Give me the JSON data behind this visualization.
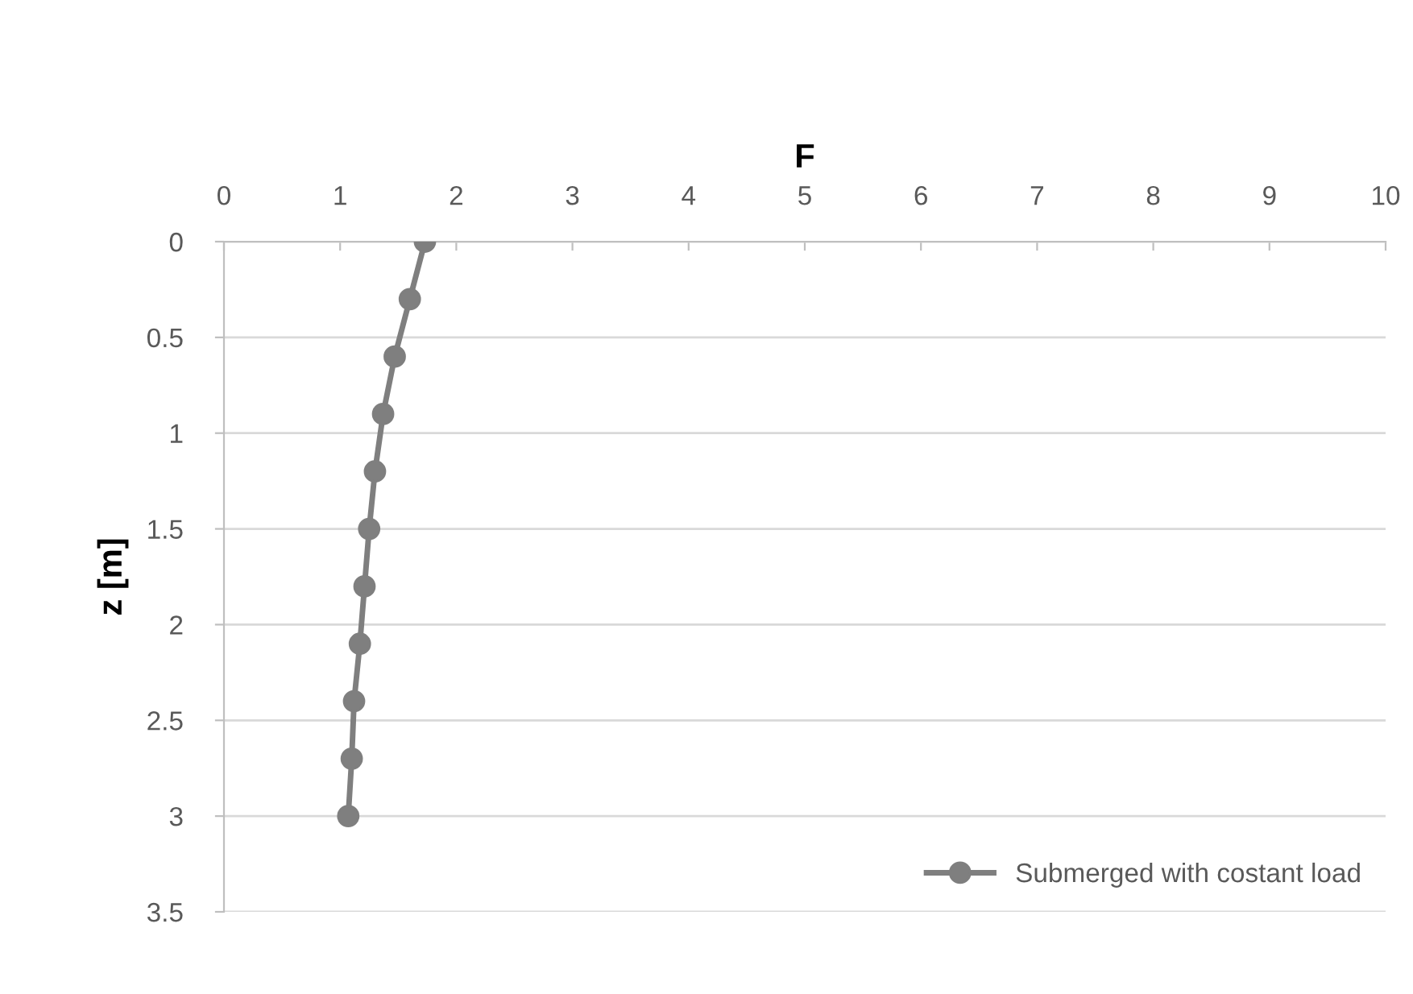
{
  "chart_data": {
    "type": "line",
    "xlabel": "F",
    "ylabel": "z [m]",
    "xlim": [
      0,
      10
    ],
    "xticks": [
      0,
      1,
      2,
      3,
      4,
      5,
      6,
      7,
      8,
      9,
      10
    ],
    "ylim": [
      3.5,
      0
    ],
    "yticks": [
      0,
      0.5,
      1,
      1.5,
      2,
      2.5,
      3,
      3.5
    ],
    "grid": "y",
    "legend": "bottom right",
    "marker": "circle",
    "line_style": "solid",
    "series": [
      {
        "name": "Submerged with costant load",
        "color": "#7f7f7f",
        "x": [
          1.73,
          1.6,
          1.47,
          1.37,
          1.3,
          1.25,
          1.21,
          1.17,
          1.12,
          1.1,
          1.07
        ],
        "values": [
          0,
          0.3,
          0.6,
          0.9,
          1.2,
          1.5,
          1.8,
          2.1,
          2.4,
          2.7,
          3.0
        ]
      }
    ]
  }
}
